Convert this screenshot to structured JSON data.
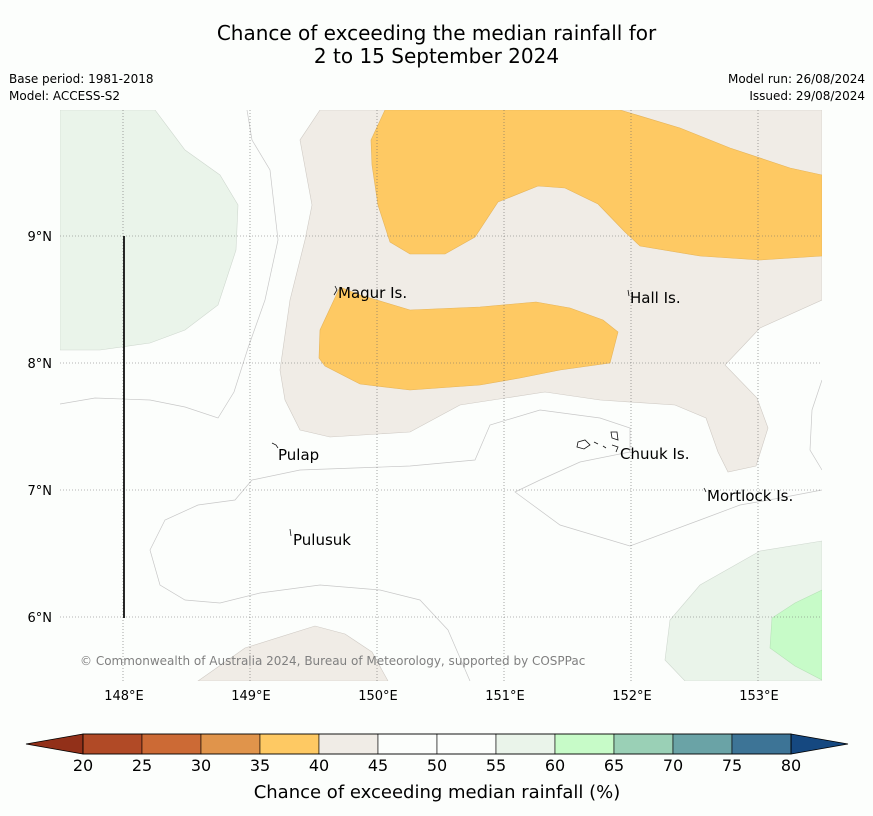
{
  "title": {
    "line1": "Chance of exceeding the median rainfall for",
    "line2": "2 to 15 September 2024"
  },
  "meta": {
    "base_period": "Base period: 1981-2018",
    "model": "Model: ACCESS-S2",
    "model_run": "Model run: 26/08/2024",
    "issued": "Issued: 29/08/2024"
  },
  "map": {
    "lon_ticks": [
      "148°E",
      "149°E",
      "150°E",
      "151°E",
      "152°E",
      "153°E"
    ],
    "lat_ticks": [
      "9°N",
      "8°N",
      "7°N",
      "6°N"
    ],
    "places": [
      "Magur Is.",
      "Hall Is.",
      "Pulap",
      "Chuuk Is.",
      "Mortlock Is.",
      "Pulusuk"
    ],
    "copyright": "© Commonwealth of Australia 2024, Bureau of Meteorology, supported by COSPPac"
  },
  "colorbar": {
    "label": "Chance of exceeding median rainfall (%)",
    "ticks": [
      "20",
      "25",
      "30",
      "35",
      "40",
      "45",
      "50",
      "55",
      "60",
      "65",
      "70",
      "75",
      "80"
    ],
    "colors": [
      "#b14a26",
      "#cc6a35",
      "#e0944b",
      "#fec963",
      "#f0ece6",
      "#fcfefc",
      "#fcfefc",
      "#eaf4ea",
      "#c7fbc8",
      "#9ad0b6",
      "#6aa3a6",
      "#3d7496"
    ],
    "under_color": "#923019",
    "over_color": "#154880"
  }
}
